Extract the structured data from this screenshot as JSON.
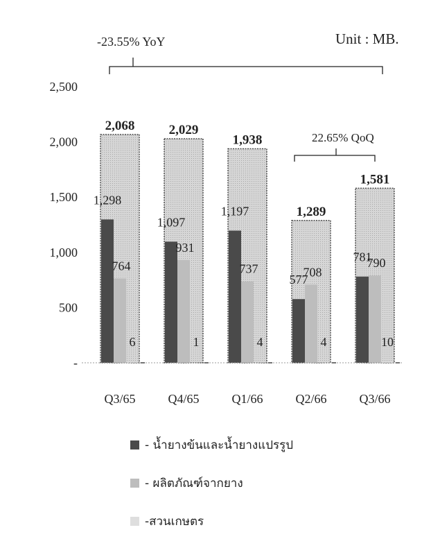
{
  "unit_label": "Unit : MB.",
  "yoy_label": "-23.55% YoY",
  "qoq_label": "22.65% QoQ",
  "chart_data": {
    "type": "bar",
    "categories": [
      "Q3/65",
      "Q4/65",
      "Q1/66",
      "Q2/66",
      "Q3/66"
    ],
    "totals": [
      2068,
      2029,
      1938,
      1289,
      1581
    ],
    "total_labels": [
      "2,068",
      "2,029",
      "1,938",
      "1,289",
      "1,581"
    ],
    "series": [
      {
        "name": "- น้ำยางข้นและน้ำยางแปรรูป",
        "values": [
          1298,
          1097,
          1197,
          577,
          781
        ],
        "labels": [
          "1,298",
          "1,097",
          "1,197",
          "577",
          "781"
        ],
        "color": "#4a4a4a"
      },
      {
        "name": "- ผลิตภัณฑ์จากยาง",
        "values": [
          764,
          931,
          737,
          708,
          790
        ],
        "labels": [
          "764",
          "931",
          "737",
          "708",
          "790"
        ],
        "color": "#bdbdbd"
      },
      {
        "name": "-สวนเกษตร",
        "values": [
          6,
          1,
          4,
          4,
          10
        ],
        "labels": [
          "6",
          "1",
          "4",
          "4",
          "10"
        ],
        "color": "#dedede"
      }
    ],
    "yticks": [
      0,
      500,
      1000,
      1500,
      2000,
      2500
    ],
    "ytick_labels": [
      "-",
      "500",
      "1,000",
      "1,500",
      "2,000",
      "2,500"
    ],
    "ylim": [
      0,
      2500
    ]
  }
}
